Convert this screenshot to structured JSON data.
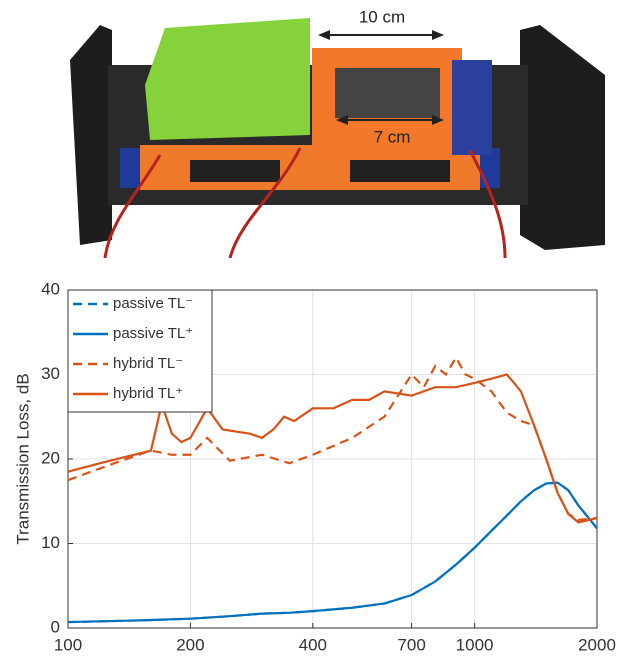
{
  "photo": {
    "labels": [
      "10 cm",
      "7 cm"
    ]
  },
  "chart_data": {
    "type": "line",
    "y_label": "Transmission Loss, dB",
    "xscale": "log",
    "grid": true,
    "legend": "upper-left",
    "xlim": [
      100,
      2000
    ],
    "xticks": [
      100,
      200,
      400,
      700,
      1000,
      2000
    ],
    "ylim": [
      0,
      40
    ],
    "yticks": [
      0,
      10,
      20,
      30,
      40
    ],
    "series": [
      {
        "name": "passive TL⁻",
        "color": "#0072bd",
        "dash": true,
        "x": [
          100,
          150,
          200,
          250,
          300,
          350,
          400,
          500,
          600,
          700,
          800,
          900,
          1000,
          1100,
          1200,
          1300,
          1400,
          1500,
          1600,
          1700,
          1800,
          2000
        ],
        "values": [
          0.7,
          0.9,
          1.1,
          1.4,
          1.7,
          1.8,
          2.0,
          2.4,
          2.9,
          3.9,
          5.5,
          7.5,
          9.5,
          11.5,
          13.3,
          15,
          16.3,
          17.1,
          17.2,
          16.3,
          14.5,
          11.8
        ]
      },
      {
        "name": "passive TL⁺",
        "color": "#0072bd",
        "dash": false,
        "x": [
          100,
          150,
          200,
          250,
          300,
          350,
          400,
          500,
          600,
          700,
          800,
          900,
          1000,
          1100,
          1200,
          1300,
          1400,
          1500,
          1600,
          1700,
          1800,
          2000
        ],
        "values": [
          0.7,
          0.9,
          1.1,
          1.4,
          1.7,
          1.8,
          2.0,
          2.4,
          2.9,
          3.9,
          5.5,
          7.5,
          9.5,
          11.5,
          13.3,
          15,
          16.3,
          17.1,
          17.2,
          16.3,
          14.5,
          11.8
        ]
      },
      {
        "name": "hybrid TL⁻",
        "color": "#d95319",
        "dash": true,
        "x": [
          100,
          130,
          160,
          180,
          200,
          220,
          250,
          300,
          350,
          400,
          500,
          600,
          700,
          750,
          800,
          850,
          900,
          950,
          1000,
          1100,
          1200,
          1300,
          1400,
          1500,
          1600,
          1700,
          1800,
          2000
        ],
        "values": [
          17.5,
          19.5,
          21,
          20.5,
          20.5,
          22.5,
          19.8,
          20.5,
          19.5,
          20.5,
          22.5,
          25,
          30,
          28.5,
          31,
          30,
          32,
          30,
          29.5,
          28,
          25.5,
          24.5,
          24,
          20,
          16,
          13.5,
          12.8,
          13
        ]
      },
      {
        "name": "hybrid TL⁺",
        "color": "#d95319",
        "dash": false,
        "x": [
          100,
          120,
          140,
          160,
          170,
          180,
          190,
          200,
          220,
          240,
          280,
          300,
          320,
          340,
          360,
          400,
          450,
          500,
          550,
          600,
          700,
          800,
          900,
          1000,
          1100,
          1200,
          1250,
          1300,
          1400,
          1500,
          1600,
          1700,
          1800,
          2000
        ],
        "values": [
          18.5,
          19.5,
          20.3,
          21,
          26.5,
          23,
          22,
          22.5,
          26,
          23.5,
          23,
          22.5,
          23.5,
          25,
          24.5,
          26,
          26,
          27,
          27,
          28,
          27.5,
          28.5,
          28.5,
          29,
          29.5,
          30,
          29,
          28,
          24,
          20,
          16,
          13.5,
          12.5,
          13
        ]
      }
    ]
  }
}
